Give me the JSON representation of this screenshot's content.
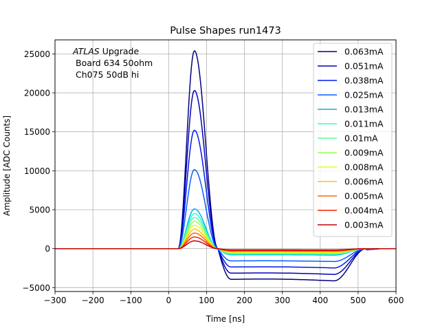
{
  "chart_data": {
    "type": "line",
    "title": "Pulse Shapes run1473",
    "xlabel": "Time [ns]",
    "ylabel": "Amplitude [ADC Counts]",
    "xlim": [
      -300,
      600
    ],
    "ylim": [
      -5500,
      26800
    ],
    "xticks": [
      -300,
      -200,
      -100,
      0,
      100,
      200,
      300,
      400,
      500,
      600
    ],
    "yticks": [
      -5000,
      0,
      5000,
      10000,
      15000,
      20000,
      25000
    ],
    "grid": true,
    "legend_position": "top-right",
    "annotation": {
      "line1_italic": "ATLAS",
      "line1_rest": " Upgrade",
      "line2": "Board 634 50ohm",
      "line3": "Ch075 50dB hi"
    },
    "pulse_model": {
      "onset_ns": 25,
      "peak_ns": 68,
      "zero_cross_ns": 130,
      "undershoot_min_ns": 165,
      "tail_end_ns": 435,
      "recovery_ns": 520,
      "undershoot_ratio": 0.155
    },
    "series": [
      {
        "name": "0.063mA",
        "color": "#00007f",
        "peak": 25400
      },
      {
        "name": "0.051mA",
        "color": "#0000b7",
        "peak": 20300
      },
      {
        "name": "0.038mA",
        "color": "#0018ee",
        "peak": 15200
      },
      {
        "name": "0.025mA",
        "color": "#0060ff",
        "peak": 10150
      },
      {
        "name": "0.013mA",
        "color": "#00b0ef",
        "peak": 5100
      },
      {
        "name": "0.011mA",
        "color": "#26ffd1",
        "peak": 4500
      },
      {
        "name": "0.01mA",
        "color": "#5cff9a",
        "peak": 4000
      },
      {
        "name": "0.009mA",
        "color": "#9aff5c",
        "peak": 3500
      },
      {
        "name": "0.008mA",
        "color": "#e4ff13",
        "peak": 3000
      },
      {
        "name": "0.006mA",
        "color": "#ffc400",
        "peak": 2500
      },
      {
        "name": "0.005mA",
        "color": "#ff6800",
        "peak": 2000
      },
      {
        "name": "0.004mA",
        "color": "#ff2000",
        "peak": 1500
      },
      {
        "name": "0.003mA",
        "color": "#c10000",
        "peak": 1000
      }
    ]
  }
}
